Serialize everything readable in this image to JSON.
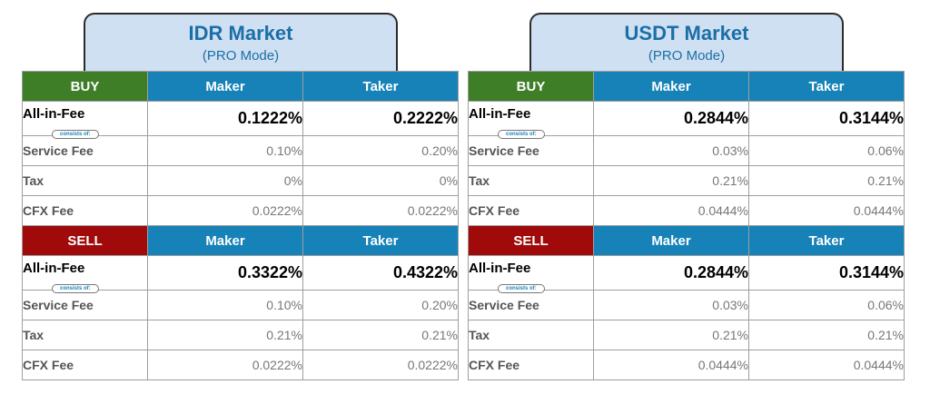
{
  "consists_label": "consists of:",
  "colors": {
    "buy": "#3e7e27",
    "sell": "#a10a0a",
    "header": "#1682b8",
    "tab_bg": "#cfe0f2",
    "title": "#1b6fa8"
  },
  "markets": {
    "idr": {
      "title": "IDR Market",
      "subtitle": "(PRO Mode)",
      "buy": {
        "side": "BUY",
        "maker": "Maker",
        "taker": "Taker",
        "rows": [
          {
            "label": "All-in-Fee",
            "maker": "0.1222%",
            "taker": "0.2222%"
          },
          {
            "label": "Service Fee",
            "maker": "0.10%",
            "taker": "0.20%"
          },
          {
            "label": "Tax",
            "maker": "0%",
            "taker": "0%"
          },
          {
            "label": "CFX Fee",
            "maker": "0.0222%",
            "taker": "0.0222%"
          }
        ]
      },
      "sell": {
        "side": "SELL",
        "maker": "Maker",
        "taker": "Taker",
        "rows": [
          {
            "label": "All-in-Fee",
            "maker": "0.3322%",
            "taker": "0.4322%"
          },
          {
            "label": "Service Fee",
            "maker": "0.10%",
            "taker": "0.20%"
          },
          {
            "label": "Tax",
            "maker": "0.21%",
            "taker": "0.21%"
          },
          {
            "label": "CFX Fee",
            "maker": "0.0222%",
            "taker": "0.0222%"
          }
        ]
      }
    },
    "usdt": {
      "title": "USDT Market",
      "subtitle": "(PRO Mode)",
      "buy": {
        "side": "BUY",
        "maker": "Maker",
        "taker": "Taker",
        "rows": [
          {
            "label": "All-in-Fee",
            "maker": "0.2844%",
            "taker": "0.3144%"
          },
          {
            "label": "Service Fee",
            "maker": "0.03%",
            "taker": "0.06%"
          },
          {
            "label": "Tax",
            "maker": "0.21%",
            "taker": "0.21%"
          },
          {
            "label": "CFX Fee",
            "maker": "0.0444%",
            "taker": "0.0444%"
          }
        ]
      },
      "sell": {
        "side": "SELL",
        "maker": "Maker",
        "taker": "Taker",
        "rows": [
          {
            "label": "All-in-Fee",
            "maker": "0.2844%",
            "taker": "0.3144%"
          },
          {
            "label": "Service Fee",
            "maker": "0.03%",
            "taker": "0.06%"
          },
          {
            "label": "Tax",
            "maker": "0.21%",
            "taker": "0.21%"
          },
          {
            "label": "CFX Fee",
            "maker": "0.0444%",
            "taker": "0.0444%"
          }
        ]
      }
    }
  }
}
